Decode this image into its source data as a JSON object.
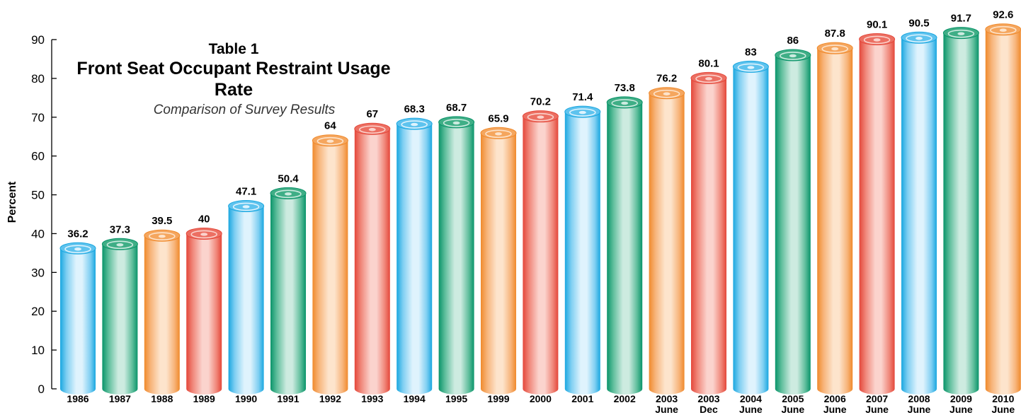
{
  "chart_data": {
    "type": "bar",
    "title": "Table 1",
    "subtitle": "Front Seat Occupant Restraint Usage Rate",
    "caption": "Comparison of Survey Results",
    "ylabel": "Percent",
    "ylim": [
      0,
      90
    ],
    "yticks": [
      "0",
      "10",
      "20",
      "30",
      "40",
      "50",
      "60",
      "70",
      "80",
      "90"
    ],
    "categories": [
      {
        "year": "1986",
        "sub": ""
      },
      {
        "year": "1987",
        "sub": ""
      },
      {
        "year": "1988",
        "sub": ""
      },
      {
        "year": "1989",
        "sub": ""
      },
      {
        "year": "1990",
        "sub": ""
      },
      {
        "year": "1991",
        "sub": ""
      },
      {
        "year": "1992",
        "sub": ""
      },
      {
        "year": "1993",
        "sub": ""
      },
      {
        "year": "1994",
        "sub": ""
      },
      {
        "year": "1995",
        "sub": ""
      },
      {
        "year": "1999",
        "sub": ""
      },
      {
        "year": "2000",
        "sub": ""
      },
      {
        "year": "2001",
        "sub": ""
      },
      {
        "year": "2002",
        "sub": ""
      },
      {
        "year": "2003",
        "sub": "June"
      },
      {
        "year": "2003",
        "sub": "Dec"
      },
      {
        "year": "2004",
        "sub": "June"
      },
      {
        "year": "2005",
        "sub": "June"
      },
      {
        "year": "2006",
        "sub": "June"
      },
      {
        "year": "2007",
        "sub": "June"
      },
      {
        "year": "2008",
        "sub": "June"
      },
      {
        "year": "2009",
        "sub": "June"
      },
      {
        "year": "2010",
        "sub": "June"
      }
    ],
    "values": [
      36.2,
      37.3,
      39.5,
      40,
      47.1,
      50.4,
      64,
      67,
      68.3,
      68.7,
      65.9,
      70.2,
      71.4,
      73.8,
      76.2,
      80.1,
      83,
      86,
      87.8,
      90.1,
      90.5,
      91.7,
      92.6
    ],
    "value_labels": [
      "36.2",
      "37.3",
      "39.5",
      "40",
      "47.1",
      "50.4",
      "64",
      "67",
      "68.3",
      "68.7",
      "65.9",
      "70.2",
      "71.4",
      "73.8",
      "76.2",
      "80.1",
      "83",
      "86",
      "87.8",
      "90.1",
      "90.5",
      "91.7",
      "92.6"
    ],
    "bar_colors": [
      "blue",
      "green",
      "orange",
      "red",
      "blue",
      "green",
      "orange",
      "red",
      "blue",
      "green",
      "orange",
      "red",
      "blue",
      "green",
      "orange",
      "red",
      "blue",
      "green",
      "orange",
      "red",
      "blue",
      "green",
      "orange"
    ],
    "palette": {
      "blue": {
        "light": "#dff3fd",
        "mid": "#7fcff2",
        "dark": "#1aa7e0",
        "top": "#5ec3ee"
      },
      "green": {
        "light": "#cdebe0",
        "mid": "#5fbe9c",
        "dark": "#0a946a",
        "top": "#3fae86"
      },
      "orange": {
        "light": "#fde4cc",
        "mid": "#f7b47a",
        "dark": "#f08a2c",
        "top": "#f5a65e"
      },
      "red": {
        "light": "#fbd3cd",
        "mid": "#f0877a",
        "dark": "#e4473a",
        "top": "#ec6f62"
      }
    },
    "grid": false,
    "legend": "none"
  }
}
